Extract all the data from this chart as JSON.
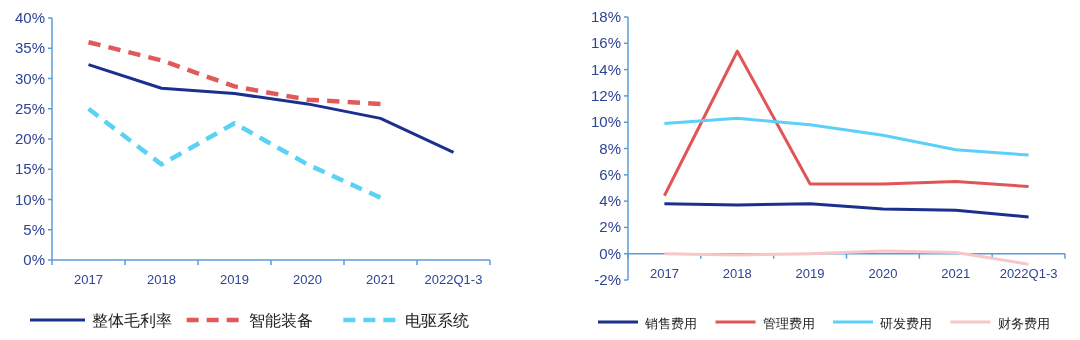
{
  "chart_data": [
    {
      "type": "line",
      "categories": [
        "2017",
        "2018",
        "2019",
        "2020",
        "2021",
        "2022Q1-3"
      ],
      "ylim": [
        0,
        40
      ],
      "yticks": [
        {
          "value": 0,
          "label": "0%"
        },
        {
          "value": 5,
          "label": "5%"
        },
        {
          "value": 10,
          "label": "10%"
        },
        {
          "value": 15,
          "label": "15%"
        },
        {
          "value": 20,
          "label": "20%"
        },
        {
          "value": 25,
          "label": "25%"
        },
        {
          "value": 30,
          "label": "30%"
        },
        {
          "value": 35,
          "label": "35%"
        },
        {
          "value": 40,
          "label": "40%"
        }
      ],
      "legend": "bottom",
      "grid": false,
      "marker": "none",
      "series": [
        {
          "name": "整体毛利率",
          "color": "#1b2f8c",
          "line_style": "solid",
          "values": [
            32.3,
            28.4,
            27.5,
            25.8,
            23.4,
            17.8
          ]
        },
        {
          "name": "智能装备",
          "color": "#e05a5a",
          "line_style": "dashed",
          "values": [
            36,
            33,
            28.7,
            26.5,
            25.8,
            null
          ]
        },
        {
          "name": "电驱系统",
          "color": "#5ad2f5",
          "line_style": "dashed",
          "values": [
            25,
            15.8,
            22.6,
            15.8,
            10.3,
            null
          ]
        }
      ]
    },
    {
      "type": "line",
      "categories": [
        "2017",
        "2018",
        "2019",
        "2020",
        "2021",
        "2022Q1-3"
      ],
      "ylim": [
        -2,
        18
      ],
      "yticks": [
        {
          "value": -2,
          "label": "-2%"
        },
        {
          "value": 0,
          "label": "0%"
        },
        {
          "value": 2,
          "label": "2%"
        },
        {
          "value": 4,
          "label": "4%"
        },
        {
          "value": 6,
          "label": "6%"
        },
        {
          "value": 8,
          "label": "8%"
        },
        {
          "value": 10,
          "label": "10%"
        },
        {
          "value": 12,
          "label": "12%"
        },
        {
          "value": 14,
          "label": "14%"
        },
        {
          "value": 16,
          "label": "16%"
        },
        {
          "value": 18,
          "label": "18%"
        }
      ],
      "legend": "bottom",
      "grid": false,
      "marker": "none",
      "series": [
        {
          "name": "销售费用",
          "color": "#1b2f8c",
          "line_style": "solid",
          "values": [
            3.8,
            3.7,
            3.8,
            3.4,
            3.3,
            2.8
          ]
        },
        {
          "name": "管理费用",
          "color": "#e05555",
          "line_style": "solid",
          "values": [
            4.4,
            15.4,
            5.3,
            5.3,
            5.5,
            5.1
          ]
        },
        {
          "name": "研发费用",
          "color": "#5cd0f8",
          "line_style": "solid",
          "values": [
            9.9,
            10.3,
            9.8,
            9.0,
            7.9,
            7.5
          ]
        },
        {
          "name": "财务费用",
          "color": "#f6c6c8",
          "line_style": "solid",
          "values": [
            0,
            -0.1,
            0,
            0.2,
            0.1,
            -0.8
          ]
        }
      ]
    }
  ]
}
